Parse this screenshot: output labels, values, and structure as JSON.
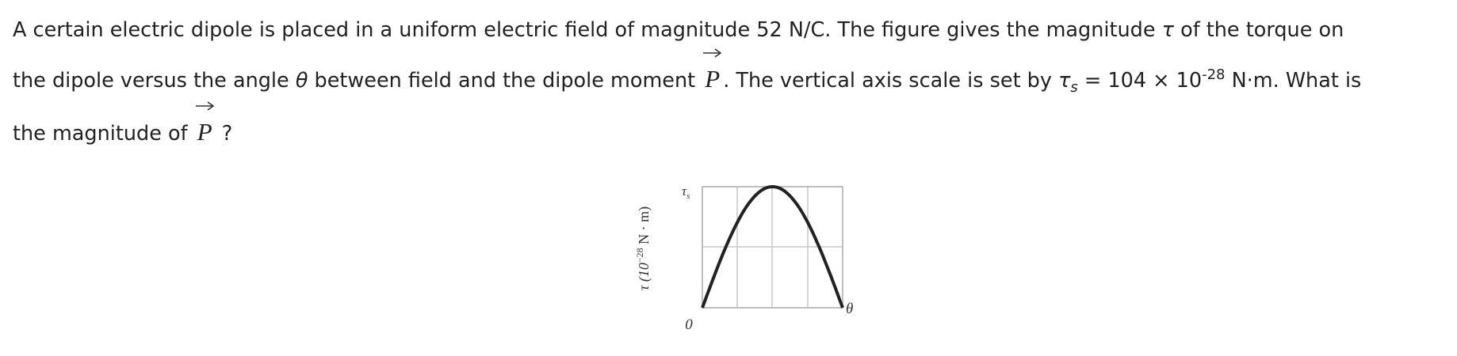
{
  "question": {
    "line_1": [
      "A certain electric dipole is placed in a uniform electric field of magnitude 52 N/C. The figure gives the magnitude ",
      "τ",
      " of the torque on"
    ],
    "line_2": [
      "the dipole versus the angle ",
      "θ",
      " between field and the dipole moment ",
      "P",
      ". The vertical axis scale is set by ",
      "τ",
      "s",
      " = 104 × 10",
      "-28",
      " N·m. What is"
    ],
    "line_3": [
      "the magnitude of ",
      "P",
      " ?"
    ]
  },
  "figure": {
    "y_axis_label": [
      "τ (10",
      "−28",
      " N · m)"
    ],
    "top_label": [
      "τ",
      "s"
    ],
    "origin_label": "0",
    "x_axis_label": "θ"
  }
}
